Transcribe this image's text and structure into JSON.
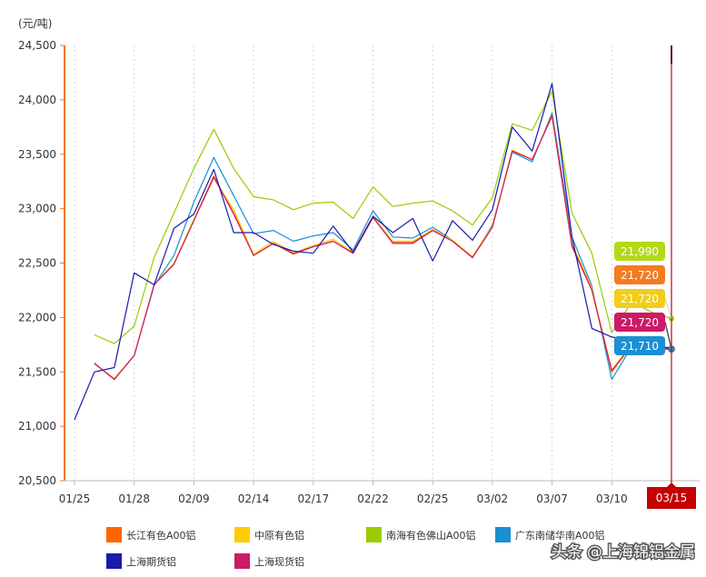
{
  "chart_data": {
    "type": "line",
    "unit_label": "(元/吨)",
    "title": "",
    "xlabel": "",
    "ylabel": "",
    "ylim": [
      20500,
      24500
    ],
    "yticks": [
      20500,
      21000,
      21500,
      22000,
      22500,
      23000,
      23500,
      24000,
      24500
    ],
    "ytick_labels": [
      "20,500",
      "21,000",
      "21,500",
      "22,000",
      "22,500",
      "23,000",
      "23,500",
      "24,000",
      "24,500"
    ],
    "xtick_labels": [
      {
        "i": 0,
        "label": "01/25"
      },
      {
        "i": 3,
        "label": "01/28"
      },
      {
        "i": 6,
        "label": "02/09"
      },
      {
        "i": 9,
        "label": "02/14"
      },
      {
        "i": 12,
        "label": "02/17"
      },
      {
        "i": 15,
        "label": "02/22"
      },
      {
        "i": 18,
        "label": "02/25"
      },
      {
        "i": 21,
        "label": "03/02"
      },
      {
        "i": 24,
        "label": "03/07"
      },
      {
        "i": 27,
        "label": "03/10"
      },
      {
        "i": 30,
        "label": "03/15"
      }
    ],
    "grid": "vertical-dashed",
    "crosshair_label": "03/15",
    "crosshair_color": "#c40000",
    "series": [
      {
        "name": "长江有色A00铝",
        "color": "#ff6600",
        "values": [
          null,
          21580,
          21430,
          21650,
          22300,
          22500,
          22900,
          23300,
          22960,
          22570,
          22680,
          22580,
          22650,
          22700,
          22590,
          22920,
          22690,
          22690,
          22800,
          22700,
          22550,
          22830,
          23540,
          23450,
          23860,
          22650,
          22250,
          21500,
          21750,
          21700,
          21720
        ]
      },
      {
        "name": "中原有色铝",
        "color": "#ffcc00",
        "values": [
          null,
          21570,
          21440,
          21650,
          22300,
          22500,
          22900,
          23280,
          22990,
          22580,
          22700,
          22590,
          22660,
          22720,
          22600,
          22930,
          22700,
          22700,
          22810,
          22710,
          22560,
          22840,
          23540,
          23450,
          23850,
          22680,
          22270,
          21520,
          21760,
          21710,
          21720
        ]
      },
      {
        "name": "南海有色佛山A00铝",
        "color": "#99cc00",
        "values": [
          null,
          21840,
          21760,
          21920,
          22550,
          22960,
          23370,
          23730,
          23370,
          23110,
          23080,
          22990,
          23050,
          23060,
          22910,
          23200,
          23020,
          23050,
          23070,
          22980,
          22850,
          23100,
          23780,
          23720,
          24080,
          22960,
          22590,
          21860,
          22140,
          22050,
          21990
        ]
      },
      {
        "name": "广东南储华南A00铝",
        "color": "#1a8fd1",
        "values": [
          null,
          21570,
          21440,
          21650,
          22290,
          22570,
          23060,
          23470,
          23120,
          22770,
          22800,
          22700,
          22750,
          22780,
          22620,
          22980,
          22740,
          22730,
          22830,
          22710,
          22550,
          22850,
          23520,
          23430,
          23880,
          22740,
          22290,
          21430,
          21730,
          21700,
          21710
        ]
      },
      {
        "name": "上海期货铝",
        "color": "#1a1aad",
        "values": [
          21060,
          21500,
          21540,
          22410,
          22300,
          22820,
          22950,
          23360,
          22780,
          22780,
          22670,
          22610,
          22590,
          22840,
          22600,
          22930,
          22780,
          22910,
          22520,
          22890,
          22710,
          22990,
          23750,
          23530,
          24150,
          22740,
          21900,
          21820,
          21790,
          21740,
          21720
        ]
      },
      {
        "name": "上海现货铝",
        "color": "#cc1a66",
        "values": [
          null,
          21580,
          21430,
          21650,
          22300,
          22490,
          22890,
          23290,
          22950,
          22570,
          22680,
          22590,
          22650,
          22700,
          22590,
          22920,
          22680,
          22680,
          22800,
          22700,
          22550,
          22830,
          23530,
          23450,
          23850,
          22660,
          22250,
          21510,
          21740,
          21700,
          21720
        ]
      }
    ],
    "end_labels": [
      {
        "text": "21,990",
        "color": "#b3d91a"
      },
      {
        "text": "21,720",
        "color": "#f47b20"
      },
      {
        "text": "21,720",
        "color": "#f2cd1a"
      },
      {
        "text": "21,720",
        "color": "#cc1a66"
      },
      {
        "text": "21,710",
        "color": "#1a8fd1"
      }
    ],
    "legend_placement": "bottom"
  },
  "watermark": "头条 @上海锦铝金属"
}
